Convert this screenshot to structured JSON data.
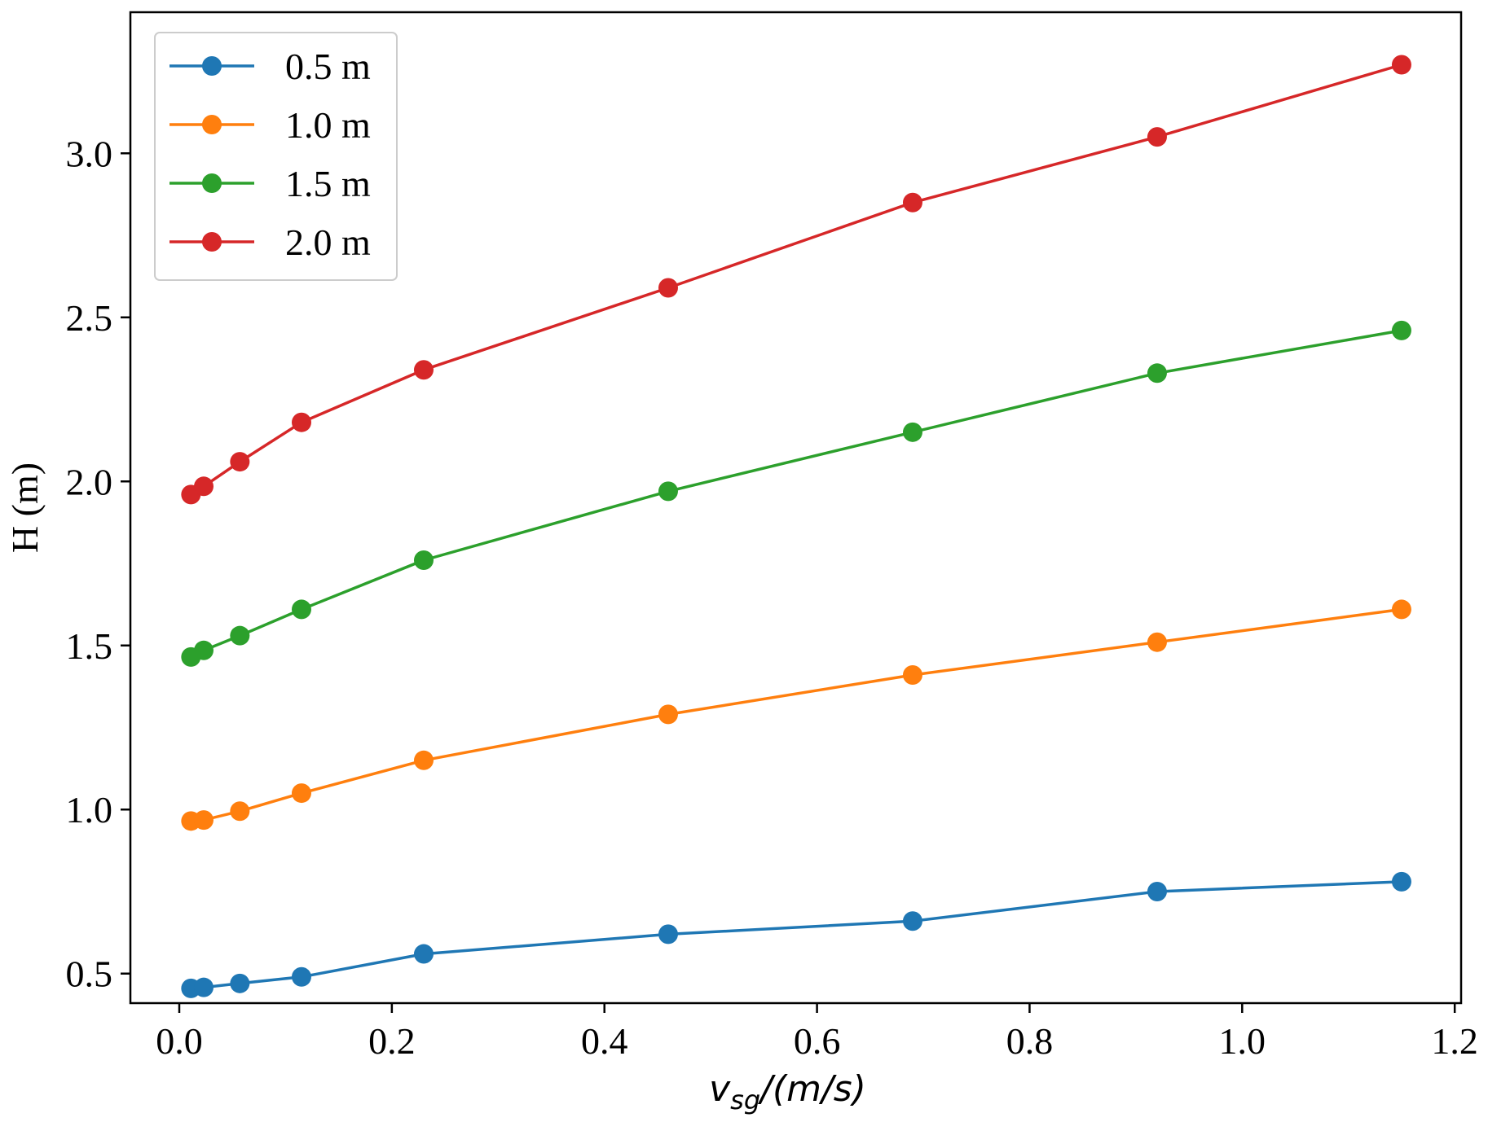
{
  "chart_data": {
    "type": "line",
    "title": "",
    "xlabel": {
      "base": "v",
      "sub": "sg",
      "rest": "/(m/s)"
    },
    "ylabel": "H (m)",
    "xlim": [
      -0.046,
      1.206
    ],
    "ylim": [
      0.41,
      3.43
    ],
    "xticks": [
      0.0,
      0.2,
      0.4,
      0.6,
      0.8,
      1.0,
      1.2
    ],
    "xtick_labels": [
      "0.0",
      "0.2",
      "0.4",
      "0.6",
      "0.8",
      "1.0",
      "1.2"
    ],
    "yticks": [
      0.5,
      1.0,
      1.5,
      2.0,
      2.5,
      3.0
    ],
    "ytick_labels": [
      "0.5",
      "1.0",
      "1.5",
      "2.0",
      "2.5",
      "3.0"
    ],
    "grid": false,
    "legend_position": "top-left",
    "x": [
      0.011,
      0.023,
      0.057,
      0.115,
      0.23,
      0.46,
      0.69,
      0.92,
      1.15
    ],
    "series": [
      {
        "name": "0.5 m",
        "color": "#1f77b4",
        "values": [
          0.455,
          0.458,
          0.47,
          0.49,
          0.56,
          0.62,
          0.66,
          0.75,
          0.78
        ]
      },
      {
        "name": "1.0 m",
        "color": "#ff7f0e",
        "values": [
          0.965,
          0.968,
          0.995,
          1.05,
          1.15,
          1.29,
          1.41,
          1.51,
          1.61
        ]
      },
      {
        "name": "1.5 m",
        "color": "#2ca02c",
        "values": [
          1.465,
          1.485,
          1.53,
          1.61,
          1.76,
          1.97,
          2.15,
          2.33,
          2.46
        ]
      },
      {
        "name": "2.0 m",
        "color": "#d62728",
        "values": [
          1.96,
          1.985,
          2.06,
          2.18,
          2.34,
          2.59,
          2.85,
          3.05,
          3.27
        ]
      }
    ]
  }
}
